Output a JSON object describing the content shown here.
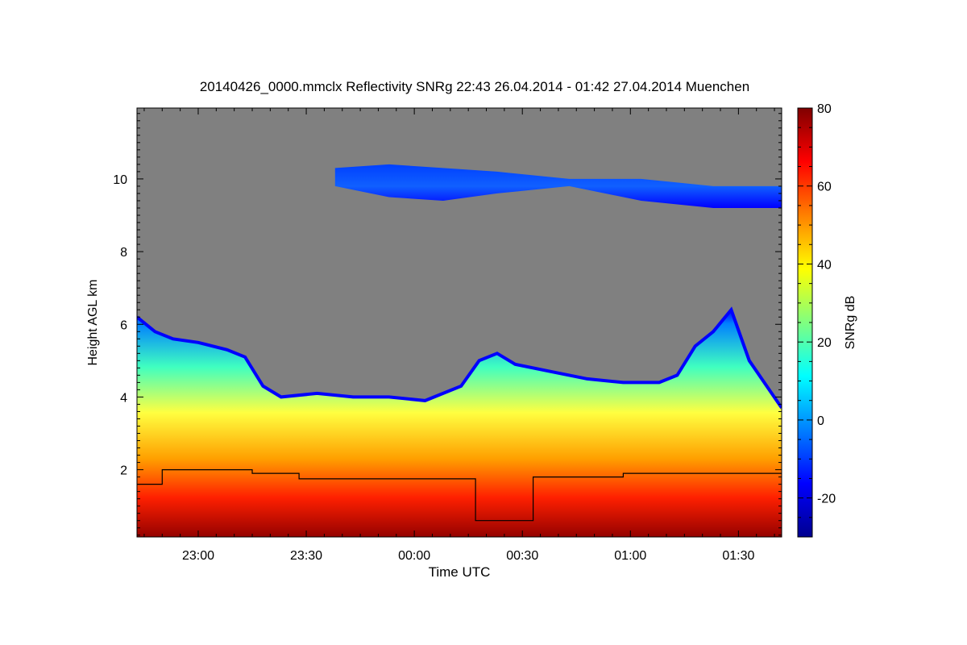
{
  "chart_data": {
    "type": "heatmap",
    "title": "20140426_0000.mmclx Reflectivity SNRg   22:43 26.04.2014 - 01:42 27.04.2014 Muenchen",
    "xlabel": "Time UTC",
    "ylabel": "Height AGL km",
    "colorbar_label": "SNRg dB",
    "x_range": [
      "22:43",
      "01:42"
    ],
    "x_ticks": [
      "23:00",
      "23:30",
      "00:00",
      "00:30",
      "01:00",
      "01:30"
    ],
    "x_tick_minutes": [
      17,
      47,
      77,
      107,
      137,
      167
    ],
    "x_span_minutes": 179,
    "ylim": [
      0.15,
      11.95
    ],
    "y_ticks": [
      2,
      4,
      6,
      8,
      10
    ],
    "clim": [
      -30,
      80
    ],
    "colorbar_ticks": [
      -20,
      0,
      20,
      40,
      60,
      80
    ],
    "missing_color": "#808080",
    "colormap": [
      "#00008f",
      "#0000ff",
      "#0080ff",
      "#00ffff",
      "#80ff80",
      "#ffff00",
      "#ff8000",
      "#ff0000",
      "#800000"
    ],
    "echo_top_km": [
      [
        0,
        6.2
      ],
      [
        5,
        5.8
      ],
      [
        10,
        5.6
      ],
      [
        17,
        5.5
      ],
      [
        25,
        5.3
      ],
      [
        30,
        5.1
      ],
      [
        35,
        4.3
      ],
      [
        40,
        4.0
      ],
      [
        50,
        4.1
      ],
      [
        60,
        4.0
      ],
      [
        70,
        4.0
      ],
      [
        80,
        3.9
      ],
      [
        90,
        4.3
      ],
      [
        95,
        5.0
      ],
      [
        100,
        5.2
      ],
      [
        105,
        4.9
      ],
      [
        115,
        4.7
      ],
      [
        125,
        4.5
      ],
      [
        135,
        4.4
      ],
      [
        145,
        4.4
      ],
      [
        150,
        4.6
      ],
      [
        155,
        5.4
      ],
      [
        160,
        5.8
      ],
      [
        165,
        6.4
      ],
      [
        170,
        5.0
      ],
      [
        179,
        3.7
      ]
    ],
    "cirrus_layer_km": [
      [
        55,
        9.8,
        10.3
      ],
      [
        70,
        9.5,
        10.4
      ],
      [
        85,
        9.4,
        10.3
      ],
      [
        100,
        9.6,
        10.2
      ],
      [
        120,
        9.8,
        10.0
      ],
      [
        140,
        9.4,
        10.0
      ],
      [
        160,
        9.2,
        9.8
      ],
      [
        179,
        9.2,
        9.8
      ]
    ],
    "overlay_line_km": [
      [
        0,
        1.6
      ],
      [
        7,
        1.6
      ],
      [
        7,
        2.0
      ],
      [
        32,
        2.0
      ],
      [
        32,
        1.9
      ],
      [
        45,
        1.9
      ],
      [
        45,
        1.75
      ],
      [
        94,
        1.75
      ],
      [
        94,
        0.6
      ],
      [
        110,
        0.6
      ],
      [
        110,
        1.8
      ],
      [
        135,
        1.8
      ],
      [
        135,
        1.9
      ],
      [
        179,
        1.9
      ]
    ]
  }
}
